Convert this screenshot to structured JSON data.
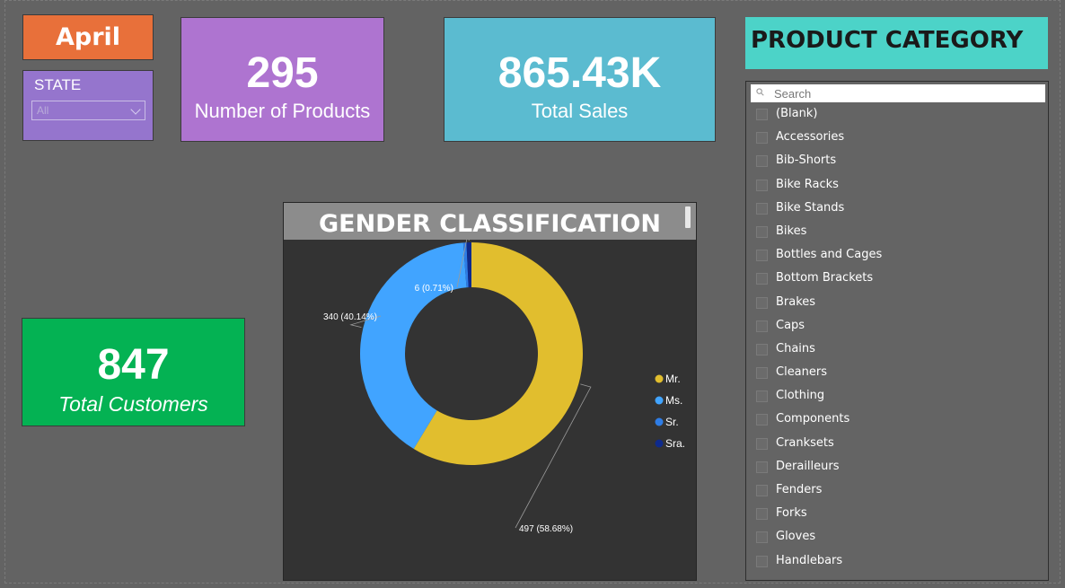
{
  "filters": {
    "month": "April",
    "state": {
      "label": "STATE",
      "selected": "All"
    }
  },
  "kpis": {
    "products": {
      "value": "295",
      "caption": "Number of Products",
      "color": "#AE74D0"
    },
    "sales": {
      "value": "865.43K",
      "caption": "Total Sales",
      "color": "#5BBBD0"
    },
    "customers": {
      "value": "847",
      "caption": "Total Customers",
      "color": "#04B253"
    }
  },
  "gender_chart": {
    "title": "GENDER CLASSIFICATION",
    "chart_data": {
      "type": "pie",
      "categories": [
        "Mr.",
        "Ms.",
        "Sr.",
        "Sra."
      ],
      "values": [
        497,
        340,
        4,
        6
      ],
      "colors": [
        "#E1BE2E",
        "#41A4FF",
        "#2E7DE6",
        "#0E2A8C"
      ],
      "data_labels": [
        "497 (58.68%)",
        "340 (40.14%)",
        "",
        "6 (0.71%)"
      ],
      "legend_position": "right"
    }
  },
  "product_category": {
    "title": "PRODUCT CATEGORY",
    "search_placeholder": "Search",
    "items": [
      "(Blank)",
      "Accessories",
      "Bib-Shorts",
      "Bike Racks",
      "Bike Stands",
      "Bikes",
      "Bottles and Cages",
      "Bottom Brackets",
      "Brakes",
      "Caps",
      "Chains",
      "Cleaners",
      "Clothing",
      "Components",
      "Cranksets",
      "Derailleurs",
      "Fenders",
      "Forks",
      "Gloves",
      "Handlebars"
    ]
  }
}
